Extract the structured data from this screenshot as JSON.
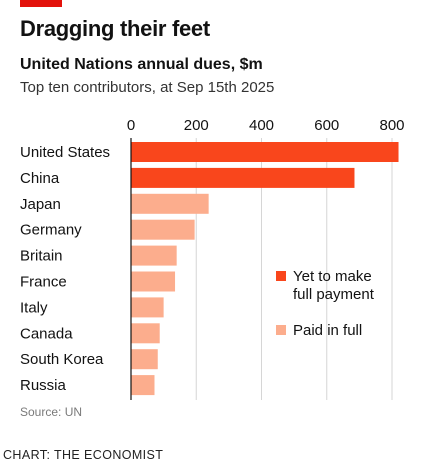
{
  "header": {
    "title": "Dragging their feet",
    "subtitle": "United Nations annual dues, $m",
    "description": "Top ten contributors, at Sep 15th 2025"
  },
  "footer": {
    "source": "Source: UN",
    "credit": "CHART: THE ECONOMIST"
  },
  "colors": {
    "accent": "#e3120b",
    "unpaid": "#f9461c",
    "paid": "#fcad8d",
    "grid": "#d6d6d6"
  },
  "chart_data": {
    "type": "bar",
    "orientation": "horizontal",
    "categories": [
      "United States",
      "China",
      "Japan",
      "Germany",
      "Britain",
      "France",
      "Italy",
      "Canada",
      "South Korea",
      "Russia"
    ],
    "values": [
      820,
      685,
      238,
      195,
      140,
      135,
      100,
      88,
      82,
      72
    ],
    "status": [
      "unpaid",
      "unpaid",
      "paid",
      "paid",
      "paid",
      "paid",
      "paid",
      "paid",
      "paid",
      "paid"
    ],
    "xlim": [
      0,
      820
    ],
    "xticks": [
      0,
      200,
      400,
      600,
      800
    ],
    "grid": true,
    "legend": {
      "placement": "right",
      "items": [
        {
          "key": "unpaid",
          "label_lines": [
            "Yet to make",
            "full payment"
          ]
        },
        {
          "key": "paid",
          "label_lines": [
            "Paid in full"
          ]
        }
      ]
    }
  }
}
